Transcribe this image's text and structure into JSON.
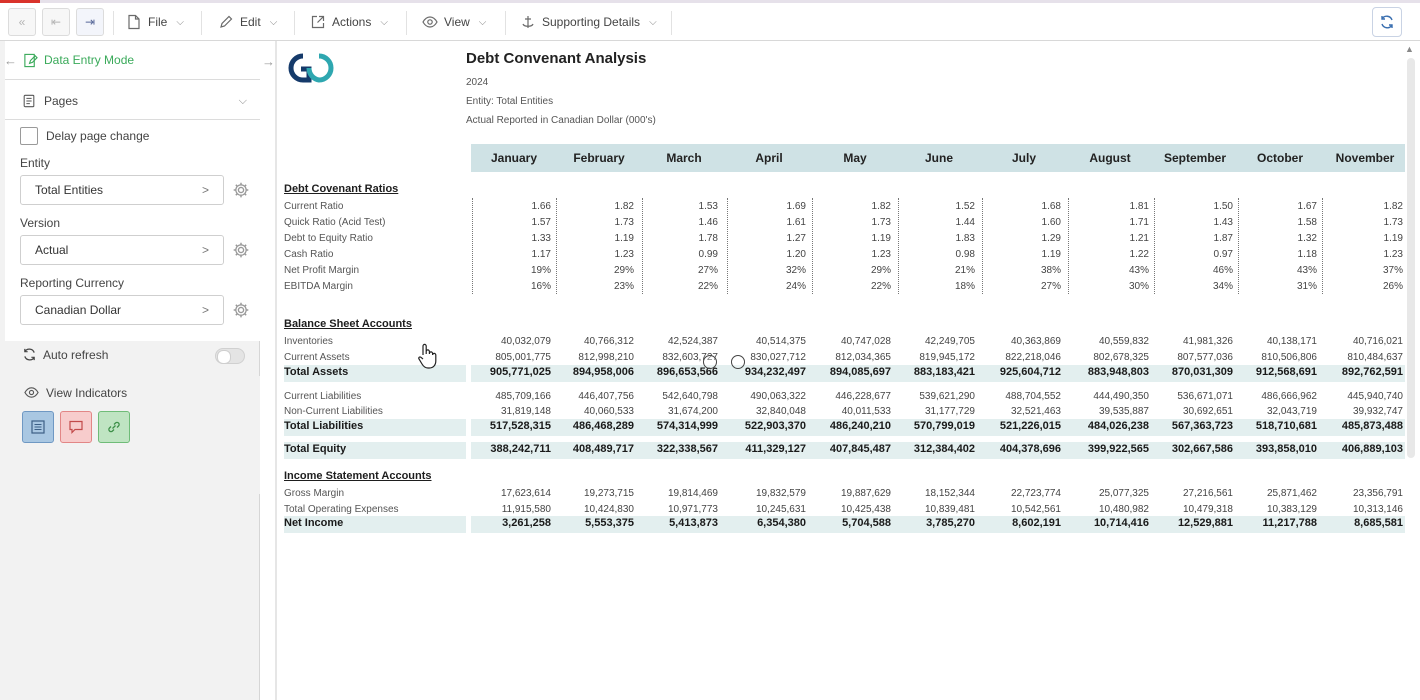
{
  "toolbar": {
    "menus": [
      "File",
      "Edit",
      "Actions",
      "View",
      "Supporting Details"
    ]
  },
  "sidebar": {
    "mode_label": "Data Entry Mode",
    "pages_label": "Pages",
    "delay_label": "Delay page change",
    "fields": [
      {
        "label": "Entity",
        "value": "Total Entities"
      },
      {
        "label": "Version",
        "value": "Actual"
      },
      {
        "label": "Reporting Currency",
        "value": "Canadian Dollar"
      }
    ],
    "auto_refresh": "Auto refresh",
    "view_indicators": "View Indicators"
  },
  "report": {
    "title": "Debt Convenant Analysis",
    "year": "2024",
    "entity": "Entity: Total Entities",
    "currency_line": "Actual Reported in Canadian Dollar (000's)",
    "months": [
      "January",
      "February",
      "March",
      "April",
      "May",
      "June",
      "July",
      "August",
      "September",
      "October",
      "November"
    ],
    "sections": {
      "ratios": "Debt Covenant Ratios",
      "balance": "Balance Sheet Accounts",
      "income": "Income Statement Accounts"
    },
    "rows": [
      {
        "label": "Current Ratio",
        "values": [
          "1.66",
          "1.82",
          "1.53",
          "1.69",
          "1.82",
          "1.52",
          "1.68",
          "1.81",
          "1.50",
          "1.67",
          "1.82"
        ]
      },
      {
        "label": "Quick Ratio (Acid Test)",
        "values": [
          "1.57",
          "1.73",
          "1.46",
          "1.61",
          "1.73",
          "1.44",
          "1.60",
          "1.71",
          "1.43",
          "1.58",
          "1.73"
        ]
      },
      {
        "label": "Debt to Equity Ratio",
        "values": [
          "1.33",
          "1.19",
          "1.78",
          "1.27",
          "1.19",
          "1.83",
          "1.29",
          "1.21",
          "1.87",
          "1.32",
          "1.19"
        ]
      },
      {
        "label": "Cash Ratio",
        "values": [
          "1.17",
          "1.23",
          "0.99",
          "1.20",
          "1.23",
          "0.98",
          "1.19",
          "1.22",
          "0.97",
          "1.18",
          "1.23"
        ]
      },
      {
        "label": "Net Profit Margin",
        "values": [
          "19%",
          "29%",
          "27%",
          "32%",
          "29%",
          "21%",
          "38%",
          "43%",
          "46%",
          "43%",
          "37%"
        ]
      },
      {
        "label": "EBITDA Margin",
        "values": [
          "16%",
          "23%",
          "22%",
          "24%",
          "22%",
          "18%",
          "27%",
          "30%",
          "34%",
          "31%",
          "26%"
        ]
      },
      {
        "label": "Inventories",
        "values": [
          "40,032,079",
          "40,766,312",
          "42,524,387",
          "40,514,375",
          "40,747,028",
          "42,249,705",
          "40,363,869",
          "40,559,832",
          "41,981,326",
          "40,138,171",
          "40,716,021"
        ]
      },
      {
        "label": "Current Assets",
        "values": [
          "805,001,775",
          "812,998,210",
          "832,603,727",
          "830,027,712",
          "812,034,365",
          "819,945,172",
          "822,218,046",
          "802,678,325",
          "807,577,036",
          "810,506,806",
          "810,484,637"
        ]
      },
      {
        "label": "Total Assets",
        "values": [
          "905,771,025",
          "894,958,006",
          "896,653,566",
          "934,232,497",
          "894,085,697",
          "883,183,421",
          "925,604,712",
          "883,948,803",
          "870,031,309",
          "912,568,691",
          "892,762,591"
        ]
      },
      {
        "label": "Current Liabilities",
        "values": [
          "485,709,166",
          "446,407,756",
          "542,640,798",
          "490,063,322",
          "446,228,677",
          "539,621,290",
          "488,704,552",
          "444,490,350",
          "536,671,071",
          "486,666,962",
          "445,940,740"
        ]
      },
      {
        "label": "Non-Current Liabilities",
        "values": [
          "31,819,148",
          "40,060,533",
          "31,674,200",
          "32,840,048",
          "40,011,533",
          "31,177,729",
          "32,521,463",
          "39,535,887",
          "30,692,651",
          "32,043,719",
          "39,932,747"
        ]
      },
      {
        "label": "Total Liabilities",
        "values": [
          "517,528,315",
          "486,468,289",
          "574,314,999",
          "522,903,370",
          "486,240,210",
          "570,799,019",
          "521,226,015",
          "484,026,238",
          "567,363,723",
          "518,710,681",
          "485,873,488"
        ]
      },
      {
        "label": "Total Equity",
        "values": [
          "388,242,711",
          "408,489,717",
          "322,338,567",
          "411,329,127",
          "407,845,487",
          "312,384,402",
          "404,378,696",
          "399,922,565",
          "302,667,586",
          "393,858,010",
          "406,889,103"
        ]
      },
      {
        "label": "Gross Margin",
        "values": [
          "17,623,614",
          "19,273,715",
          "19,814,469",
          "19,832,579",
          "19,887,629",
          "18,152,344",
          "22,723,774",
          "25,077,325",
          "27,216,561",
          "25,871,462",
          "23,356,791"
        ]
      },
      {
        "label": "Total Operating Expenses",
        "values": [
          "11,915,580",
          "10,424,830",
          "10,971,773",
          "10,245,631",
          "10,425,438",
          "10,839,481",
          "10,542,561",
          "10,480,982",
          "10,479,318",
          "10,383,129",
          "10,313,146"
        ]
      },
      {
        "label": "Net Income",
        "values": [
          "3,261,258",
          "5,553,375",
          "5,413,873",
          "6,354,380",
          "5,704,588",
          "3,785,270",
          "8,602,191",
          "10,714,416",
          "12,529,881",
          "11,217,788",
          "8,685,581"
        ]
      }
    ]
  }
}
